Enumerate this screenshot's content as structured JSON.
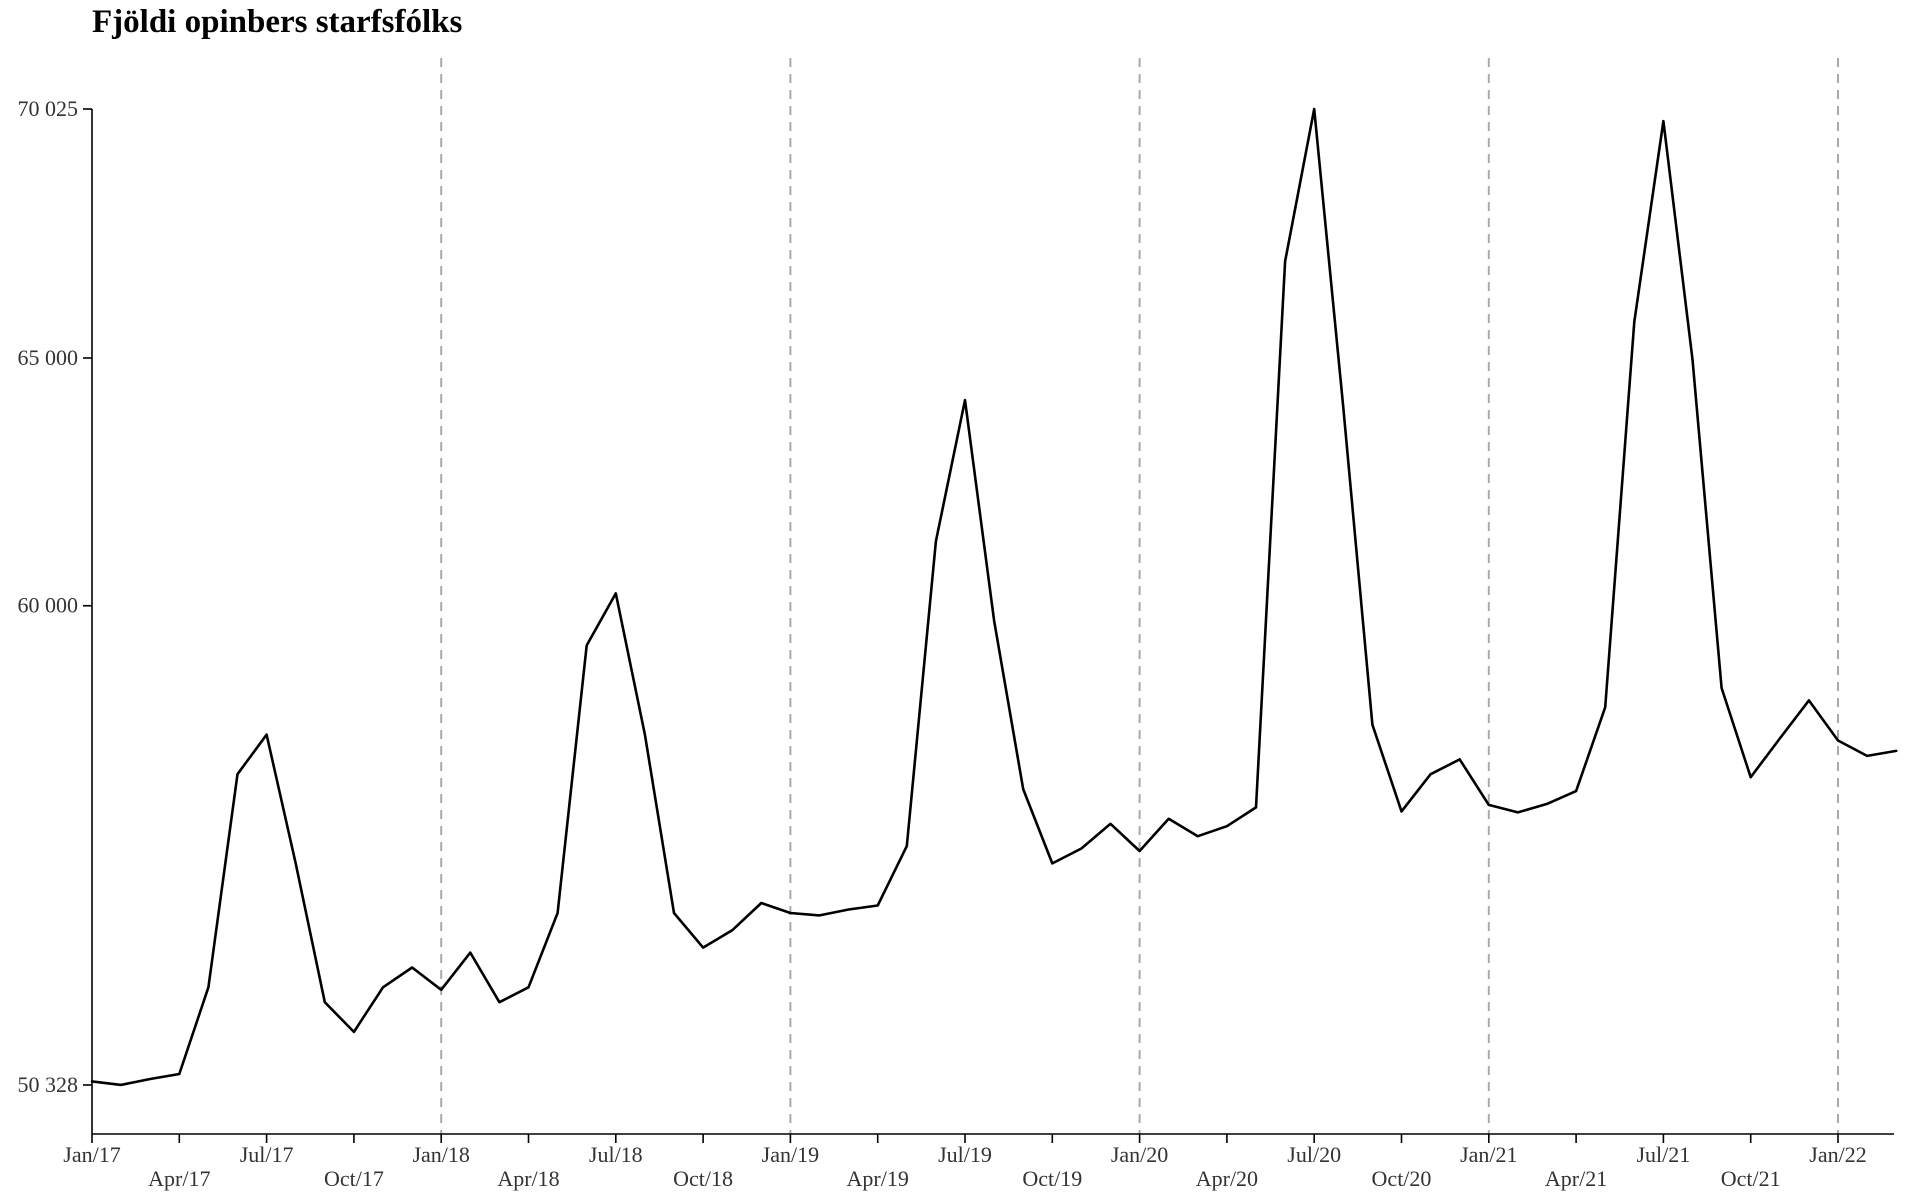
{
  "chart_data": {
    "type": "line",
    "title": "Fjöldi opinbers starfsfólks",
    "xlabel": "",
    "ylabel": "",
    "y_ticks": [
      {
        "value": 50328,
        "label": "50 328"
      },
      {
        "value": 60000,
        "label": "60 000"
      },
      {
        "value": 65000,
        "label": "65 000"
      },
      {
        "value": 70025,
        "label": "70 025"
      }
    ],
    "x_ticks": [
      {
        "index": 0,
        "label": "Jan/17"
      },
      {
        "index": 3,
        "label": "Apr/17"
      },
      {
        "index": 6,
        "label": "Jul/17"
      },
      {
        "index": 9,
        "label": "Oct/17"
      },
      {
        "index": 12,
        "label": "Jan/18"
      },
      {
        "index": 15,
        "label": "Apr/18"
      },
      {
        "index": 18,
        "label": "Jul/18"
      },
      {
        "index": 21,
        "label": "Oct/18"
      },
      {
        "index": 24,
        "label": "Jan/19"
      },
      {
        "index": 27,
        "label": "Apr/19"
      },
      {
        "index": 30,
        "label": "Jul/19"
      },
      {
        "index": 33,
        "label": "Oct/19"
      },
      {
        "index": 36,
        "label": "Jan/20"
      },
      {
        "index": 39,
        "label": "Apr/20"
      },
      {
        "index": 42,
        "label": "Jul/20"
      },
      {
        "index": 45,
        "label": "Oct/20"
      },
      {
        "index": 48,
        "label": "Jan/21"
      },
      {
        "index": 51,
        "label": "Apr/21"
      },
      {
        "index": 54,
        "label": "Jul/21"
      },
      {
        "index": 57,
        "label": "Oct/21"
      },
      {
        "index": 60,
        "label": "Jan/22"
      }
    ],
    "vlines_at": [
      "Jan/18",
      "Jan/19",
      "Jan/20",
      "Jan/21",
      "Jan/22"
    ],
    "ylim": [
      49400,
      70025
    ],
    "grid": false,
    "series": [
      {
        "values": [
          50400,
          50330,
          50450,
          50550,
          52300,
          56600,
          57400,
          54800,
          52000,
          51400,
          52300,
          52700,
          52250,
          53000,
          52000,
          52300,
          53800,
          59200,
          60250,
          57400,
          53800,
          53100,
          53450,
          54000,
          53800,
          53750,
          53870,
          53950,
          55150,
          61300,
          64150,
          59700,
          56300,
          54800,
          55100,
          55600,
          55050,
          55700,
          55350,
          55550,
          55930,
          66950,
          70025,
          64000,
          57600,
          55850,
          56600,
          56900,
          55980,
          55830,
          56000,
          56260,
          57950,
          65730,
          69780,
          64970,
          58340,
          56540,
          57320,
          58090,
          57280,
          56970,
          57070
        ],
        "color": "#000000"
      }
    ]
  }
}
